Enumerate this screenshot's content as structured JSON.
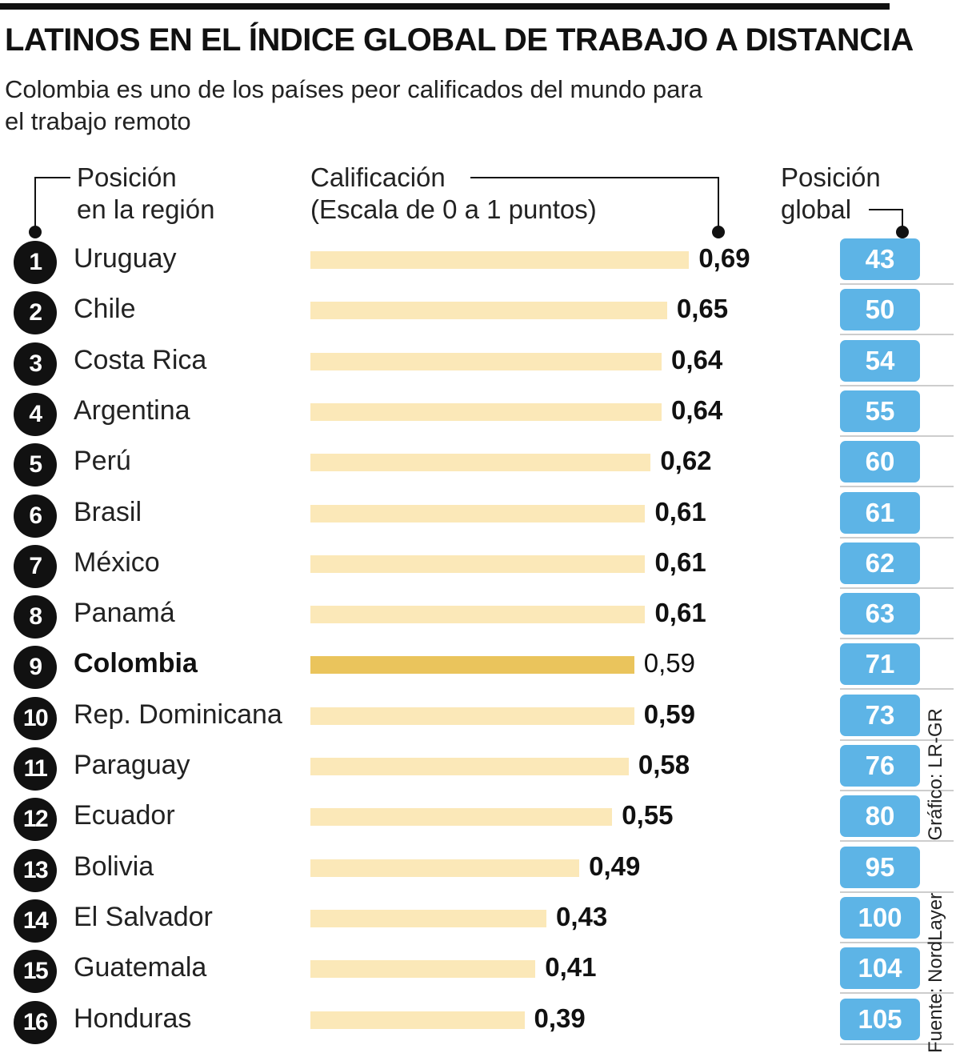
{
  "title": "LATINOS EN EL ÍNDICE GLOBAL DE TRABAJO A DISTANCIA",
  "subtitle": "Colombia es uno de los países peor calificados del mundo para el trabajo remoto",
  "headers": {
    "position_region": "Posición\nen la región",
    "score": "Calificación\n(Escala de 0 a 1 puntos)",
    "position_global": "Posición\nglobal"
  },
  "source": "Fuente: NordLayer",
  "graphic_credit": "Gráfico: LR-GR",
  "colors": {
    "bar": "#fbe8b8",
    "bar_highlight": "#eac45c",
    "pill": "#5db4e6",
    "badge": "#111111"
  },
  "chart_data": {
    "type": "bar",
    "orientation": "horizontal",
    "xlim": [
      0,
      1
    ],
    "highlight": "Colombia",
    "categories": [
      "Uruguay",
      "Chile",
      "Costa Rica",
      "Argentina",
      "Perú",
      "Brasil",
      "México",
      "Panamá",
      "Colombia",
      "Rep. Dominicana",
      "Paraguay",
      "Ecuador",
      "Bolivia",
      "El Salvador",
      "Guatemala",
      "Honduras"
    ],
    "region_rank": [
      "1",
      "2",
      "3",
      "4",
      "5",
      "6",
      "7",
      "8",
      "9",
      "10",
      "11",
      "12",
      "13",
      "14",
      "15",
      "16"
    ],
    "values": [
      0.69,
      0.65,
      0.64,
      0.64,
      0.62,
      0.61,
      0.61,
      0.61,
      0.59,
      0.59,
      0.58,
      0.55,
      0.49,
      0.43,
      0.41,
      0.39
    ],
    "value_labels": [
      "0,69",
      "0,65",
      "0,64",
      "0,64",
      "0,62",
      "0,61",
      "0,61",
      "0,61",
      "0,59",
      "0,59",
      "0,58",
      "0,55",
      "0,49",
      "0,43",
      "0,41",
      "0,39"
    ],
    "global_rank": [
      "43",
      "50",
      "54",
      "55",
      "60",
      "61",
      "62",
      "63",
      "71",
      "73",
      "76",
      "80",
      "95",
      "100",
      "104",
      "105"
    ]
  }
}
